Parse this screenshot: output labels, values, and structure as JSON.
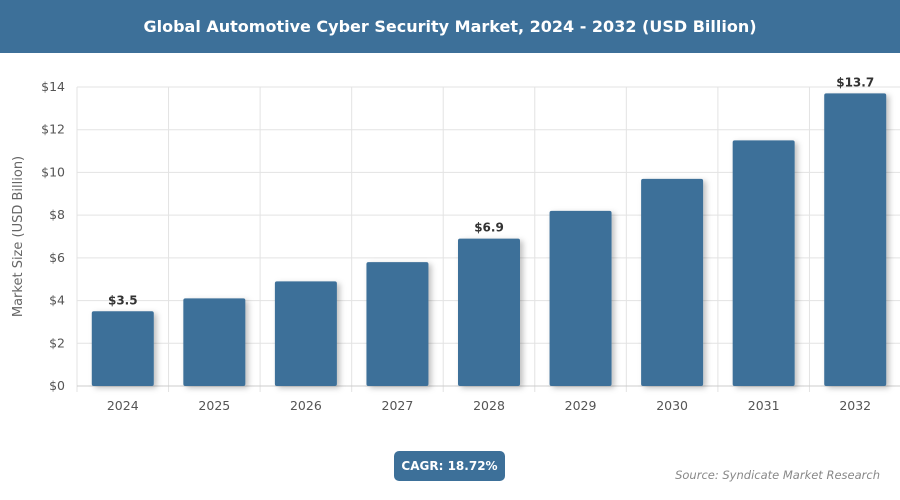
{
  "chart_data": {
    "type": "bar",
    "title": "Global Automotive Cyber Security Market, 2024 - 2032 (USD Billion)",
    "xlabel": "",
    "ylabel": "Market Size (USD Billion)",
    "categories": [
      "2024",
      "2025",
      "2026",
      "2027",
      "2028",
      "2029",
      "2030",
      "2031",
      "2032"
    ],
    "values": [
      3.5,
      4.1,
      4.9,
      5.8,
      6.9,
      8.2,
      9.7,
      11.5,
      13.7
    ],
    "data_labels": {
      "0": "$3.5",
      "4": "$6.9",
      "8": "$13.7"
    },
    "ylim": [
      0,
      14
    ],
    "yticks": [
      "$0",
      "$2",
      "$4",
      "$6",
      "$8",
      "$10",
      "$12",
      "$14"
    ],
    "grid": true,
    "bar_color": "#3d7099"
  },
  "footer": {
    "cagr": "CAGR: 18.72%",
    "source": "Source: Syndicate Market Research"
  }
}
